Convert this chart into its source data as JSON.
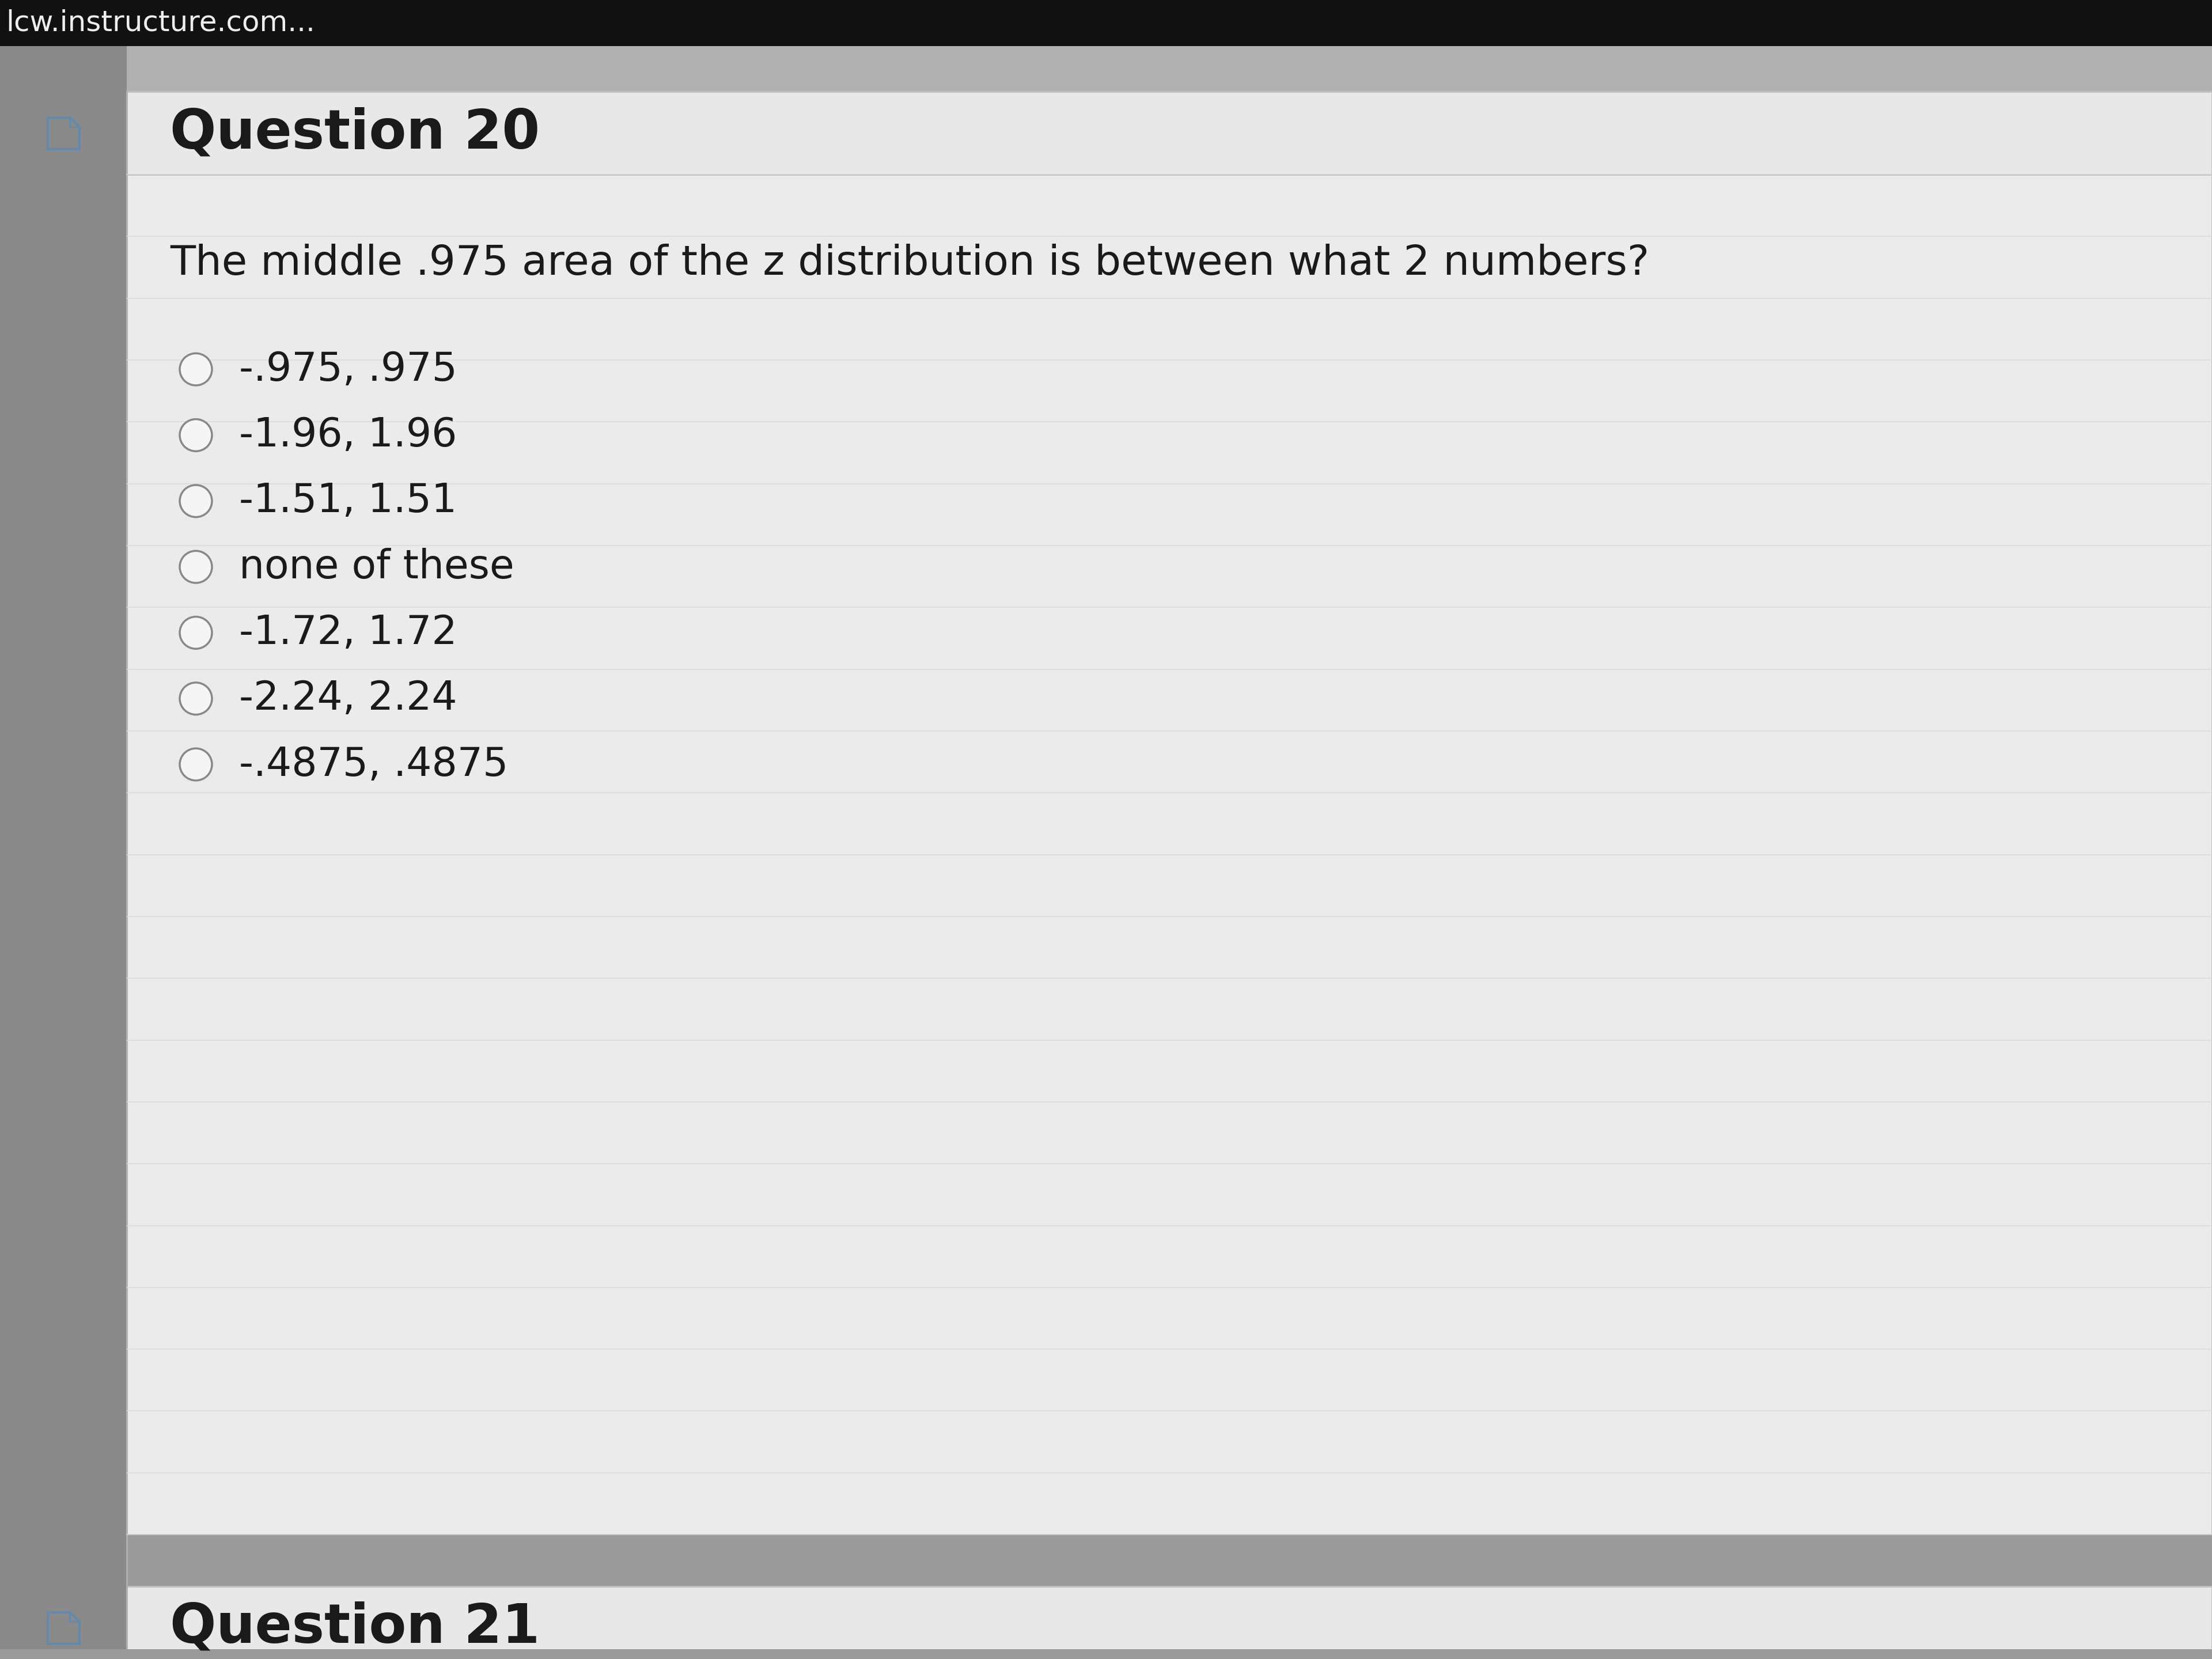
{
  "bg_left_color": "#8a8a8a",
  "bg_top_color": "#111111",
  "bg_main_color": "#9a9a9a",
  "panel_bg_color": "#f0f0f0",
  "panel_border_color": "#cccccc",
  "header_bg_color": "#e8e8e8",
  "content_bg_color": "#ebebeb",
  "header_border_color": "#c0c0c0",
  "stripe_color": "#d8d8d8",
  "footer_bg_color": "#e8e8e8",
  "question_number": "Question 20",
  "question_text": "The middle .975 area of the z distribution is between what 2 numbers?",
  "options": [
    "-.975, .975",
    "-1.96, 1.96",
    "-1.51, 1.51",
    "none of these",
    "-1.72, 1.72",
    "-2.24, 2.24",
    "-.4875, .4875"
  ],
  "footer_text": "Question 21",
  "watermark_text": "lcw.instructure.com...",
  "title_font_size": 68,
  "question_font_size": 52,
  "option_font_size": 50,
  "watermark_font_size": 36,
  "title_color": "#1a1a1a",
  "question_color": "#1a1a1a",
  "option_color": "#1a1a1a",
  "circle_edge_color": "#888888",
  "circle_fill_color": "#f5f5f5",
  "icon_color": "#6688aa",
  "watermark_color": "#eeeeee"
}
